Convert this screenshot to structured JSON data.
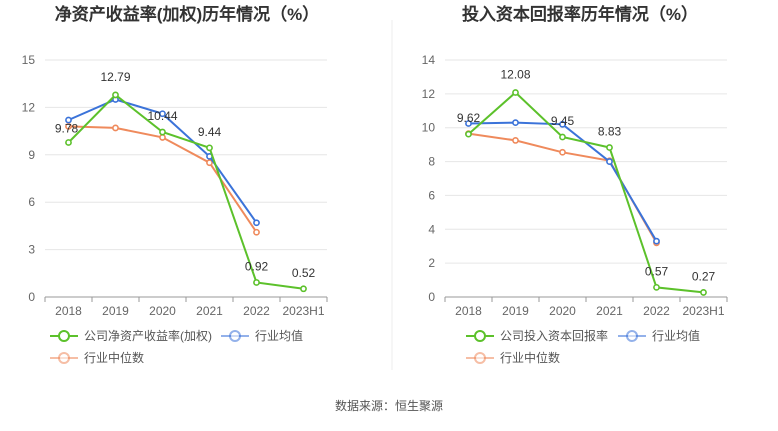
{
  "source": "数据来源：恒生聚源",
  "colors": {
    "company": "#5cc12b",
    "industry_avg": "#3b73d9",
    "industry_median": "#ef8a5c"
  },
  "chart_data": [
    {
      "type": "line",
      "title": "净资产收益率(加权)历年情况（%）",
      "categories": [
        "2018",
        "2019",
        "2020",
        "2021",
        "2022",
        "2023H1"
      ],
      "ylim": [
        0,
        15
      ],
      "yticks": [
        0,
        3,
        6,
        9,
        12,
        15
      ],
      "ytick_labels": [
        "0",
        "3",
        "6",
        "9",
        "12",
        "15"
      ],
      "grid": true,
      "legend": "bottom",
      "series": [
        {
          "name": "公司净资产收益率(加权)",
          "color_key": "company",
          "values": [
            9.78,
            12.79,
            10.44,
            9.44,
            0.92,
            0.52
          ],
          "labels": [
            "9.78",
            "12.79",
            "10.44",
            "9.44",
            "0.92",
            "0.52"
          ]
        },
        {
          "name": "行业均值",
          "color_key": "industry_avg",
          "values": [
            11.2,
            12.5,
            11.6,
            8.9,
            4.7,
            null
          ]
        },
        {
          "name": "行业中位数",
          "color_key": "industry_median",
          "values": [
            10.8,
            10.7,
            10.1,
            8.5,
            4.1,
            null
          ]
        }
      ]
    },
    {
      "type": "line",
      "title": "投入资本回报率历年情况（%）",
      "categories": [
        "2018",
        "2019",
        "2020",
        "2021",
        "2022",
        "2023H1"
      ],
      "ylim": [
        0,
        14
      ],
      "yticks": [
        0,
        2,
        4,
        6,
        8,
        10,
        12,
        14
      ],
      "ytick_labels": [
        "0",
        "2",
        "4",
        "6",
        "8",
        "10",
        "12",
        "14"
      ],
      "grid": true,
      "legend": "bottom",
      "series": [
        {
          "name": "公司投入资本回报率",
          "color_key": "company",
          "values": [
            9.62,
            12.08,
            9.45,
            8.83,
            0.57,
            0.27
          ],
          "labels": [
            "9.62",
            "12.08",
            "9.45",
            "8.83",
            "0.57",
            "0.27"
          ]
        },
        {
          "name": "行业均值",
          "color_key": "industry_avg",
          "values": [
            10.25,
            10.3,
            10.2,
            8.0,
            3.3,
            null
          ]
        },
        {
          "name": "行业中位数",
          "color_key": "industry_median",
          "values": [
            9.65,
            9.25,
            8.55,
            8.05,
            3.2,
            null
          ]
        }
      ]
    }
  ]
}
